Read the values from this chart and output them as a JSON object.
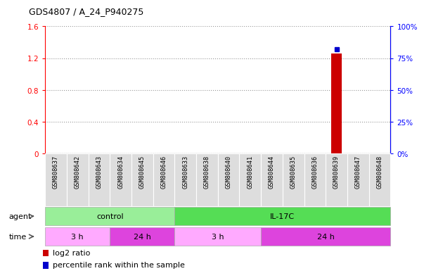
{
  "title": "GDS4807 / A_24_P940275",
  "samples": [
    "GSM808637",
    "GSM808642",
    "GSM808643",
    "GSM808634",
    "GSM808645",
    "GSM808646",
    "GSM808633",
    "GSM808638",
    "GSM808640",
    "GSM808641",
    "GSM808644",
    "GSM808635",
    "GSM808636",
    "GSM808639",
    "GSM808647",
    "GSM808648"
  ],
  "bar_index": 13,
  "log2_ratio": 1.26,
  "percentile_rank": 82,
  "ylim_left": [
    0,
    1.6
  ],
  "ylim_right": [
    0,
    100
  ],
  "yticks_left": [
    0,
    0.4,
    0.8,
    1.2,
    1.6
  ],
  "yticks_right": [
    0,
    25,
    50,
    75,
    100
  ],
  "ytick_labels_left": [
    "0",
    "0.4",
    "0.8",
    "1.2",
    "1.6"
  ],
  "ytick_labels_right": [
    "0%",
    "25%",
    "50%",
    "75%",
    "100%"
  ],
  "bar_color": "#cc0000",
  "dot_color": "#0000cc",
  "gridline_color": "#999999",
  "agent_control_color": "#99ee99",
  "agent_il17c_color": "#55dd55",
  "time_3h_color": "#ffaaff",
  "time_24h_color": "#dd44dd",
  "sample_bg_color": "#dddddd",
  "control_n": 6,
  "il17c_n": 10,
  "time_segments": [
    [
      0,
      3,
      "3 h",
      "#ffaaff"
    ],
    [
      3,
      6,
      "24 h",
      "#dd44dd"
    ],
    [
      6,
      10,
      "3 h",
      "#ffaaff"
    ],
    [
      10,
      16,
      "24 h",
      "#dd44dd"
    ]
  ],
  "legend_bar_color": "#cc0000",
  "legend_dot_color": "#0000cc"
}
